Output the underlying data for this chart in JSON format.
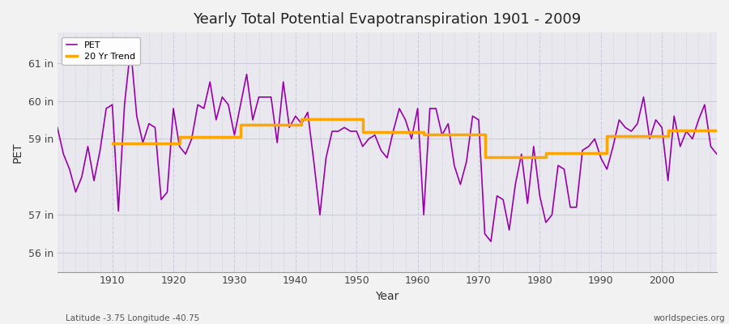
{
  "title": "Yearly Total Potential Evapotranspiration 1901 - 2009",
  "ylabel": "PET",
  "xlabel": "Year",
  "footnote_left": "Latitude -3.75 Longitude -40.75",
  "footnote_right": "worldspecies.org",
  "ylim": [
    55.5,
    61.8
  ],
  "yticks": [
    56,
    57,
    59,
    60,
    61
  ],
  "ytick_labels": [
    "56 in",
    "57 in",
    "59 in",
    "60 in",
    "61 in"
  ],
  "xticks": [
    1910,
    1920,
    1930,
    1940,
    1950,
    1960,
    1970,
    1980,
    1990,
    2000
  ],
  "start_year": 1901,
  "end_year": 2009,
  "pet_color": "#9900AA",
  "trend_color": "#FFA500",
  "bg_color": "#E8E8EE",
  "grid_color": "#CCCCDD",
  "pet_values": [
    59.3,
    58.6,
    58.2,
    57.6,
    58.0,
    58.8,
    57.9,
    58.7,
    59.8,
    59.9,
    57.1,
    59.9,
    61.4,
    59.6,
    58.9,
    59.4,
    59.3,
    57.4,
    57.6,
    59.8,
    58.8,
    58.6,
    59.0,
    59.9,
    59.8,
    60.5,
    59.5,
    60.1,
    59.9,
    59.1,
    59.9,
    60.7,
    59.5,
    60.1,
    60.1,
    60.1,
    58.9,
    60.5,
    59.3,
    59.6,
    59.4,
    59.7,
    58.4,
    57.0,
    58.5,
    59.2,
    59.2,
    59.3,
    59.2,
    59.2,
    58.8,
    59.0,
    59.1,
    58.7,
    58.5,
    59.2,
    59.8,
    59.5,
    59.0,
    59.8,
    57.0,
    59.8,
    59.8,
    59.1,
    59.4,
    58.3,
    57.8,
    58.4,
    59.6,
    59.5,
    56.5,
    56.3,
    57.5,
    57.4,
    56.6,
    57.8,
    58.6,
    57.3,
    58.8,
    57.5,
    56.8,
    57.0,
    58.3,
    58.2,
    57.2,
    57.2,
    58.7,
    58.8,
    59.0,
    58.5,
    58.2,
    58.8,
    59.5,
    59.3,
    59.2,
    59.4,
    60.1,
    59.0,
    59.5,
    59.3,
    57.9,
    59.6,
    58.8,
    59.2,
    59.0,
    59.5,
    59.9,
    58.8,
    58.6
  ],
  "trend_values": [
    null,
    null,
    null,
    null,
    null,
    null,
    null,
    null,
    null,
    58.88,
    58.88,
    58.88,
    58.88,
    58.88,
    58.88,
    58.88,
    58.88,
    58.88,
    58.88,
    58.88,
    59.05,
    59.05,
    59.05,
    59.05,
    59.05,
    59.05,
    59.05,
    59.05,
    59.05,
    59.05,
    59.38,
    59.38,
    59.38,
    59.38,
    59.38,
    59.38,
    59.38,
    59.38,
    59.38,
    59.38,
    59.52,
    59.52,
    59.52,
    59.52,
    59.52,
    59.52,
    59.52,
    59.52,
    59.52,
    59.52,
    59.17,
    59.17,
    59.17,
    59.17,
    59.17,
    59.17,
    59.17,
    59.17,
    59.17,
    59.17,
    59.12,
    59.12,
    59.12,
    59.12,
    59.12,
    59.12,
    59.12,
    59.12,
    59.12,
    59.12,
    58.52,
    58.52,
    58.52,
    58.52,
    58.52,
    58.52,
    58.52,
    58.52,
    58.52,
    58.52,
    58.62,
    58.62,
    58.62,
    58.62,
    58.62,
    58.62,
    58.62,
    58.62,
    58.62,
    58.62,
    59.08,
    59.08,
    59.08,
    59.08,
    59.08,
    59.08,
    59.08,
    59.08,
    59.08,
    59.08,
    59.22,
    59.22,
    59.22,
    59.22,
    59.22,
    59.22,
    59.22,
    59.22,
    59.22
  ]
}
